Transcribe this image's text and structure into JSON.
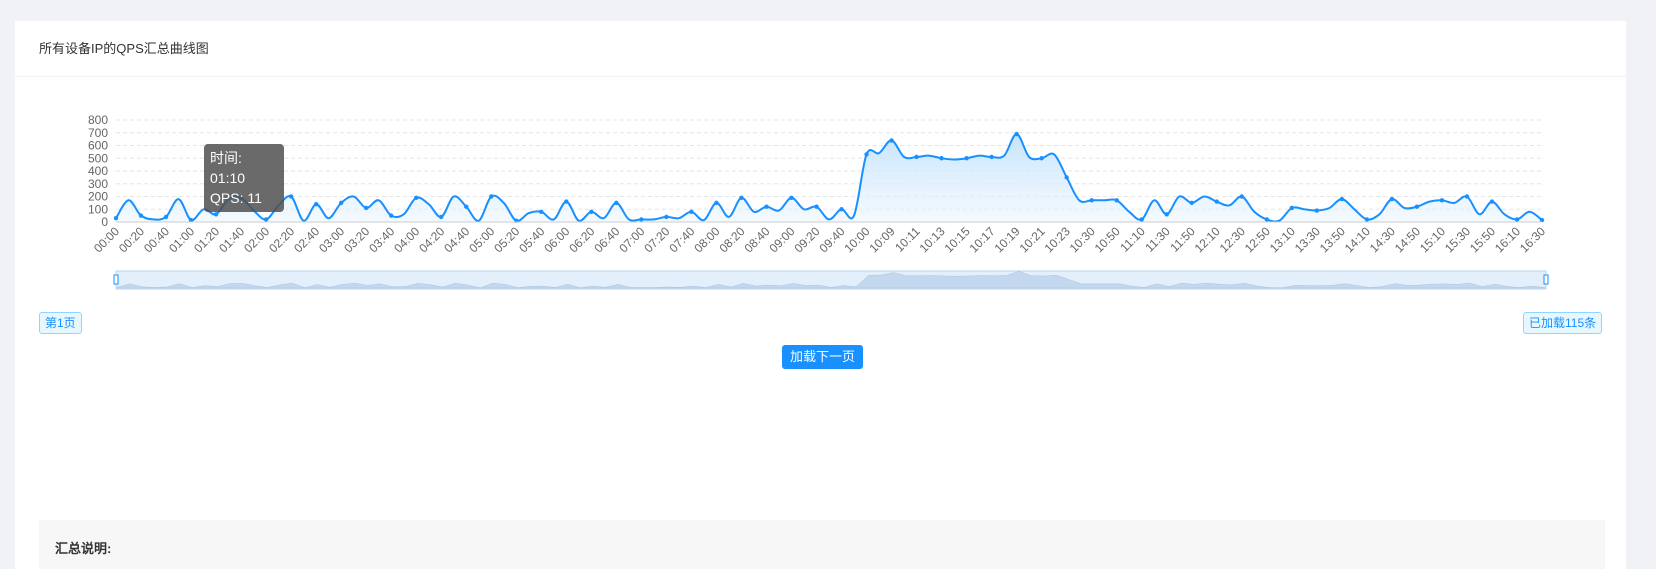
{
  "card": {
    "title": "所有设备IP的QPS汇总曲线图"
  },
  "tooltip": {
    "time_line": "时间: 01:10",
    "qps_line": "QPS: 11"
  },
  "pagination": {
    "page_badge": "第1页",
    "loaded_badge": "已加载115条",
    "next_button": "加载下一页"
  },
  "summary": {
    "title": "汇总说明:"
  },
  "colors": {
    "line": "#1890ff",
    "area_top": "#bfe0fb",
    "accent": "#1890ff"
  },
  "chart_data": {
    "type": "area",
    "title": "",
    "xlabel": "",
    "ylabel": "",
    "ylim": [
      0,
      800
    ],
    "yticks": [
      0,
      100,
      200,
      300,
      400,
      500,
      600,
      700,
      800
    ],
    "grid": true,
    "x_ticks": [
      "00:00",
      "00:20",
      "00:40",
      "01:00",
      "01:20",
      "01:40",
      "02:00",
      "02:20",
      "02:40",
      "03:00",
      "03:20",
      "03:40",
      "04:00",
      "04:20",
      "04:40",
      "05:00",
      "05:20",
      "05:40",
      "06:00",
      "06:20",
      "06:40",
      "07:00",
      "07:20",
      "07:40",
      "08:00",
      "08:20",
      "08:40",
      "09:00",
      "09:20",
      "09:40",
      "10:00",
      "10:09",
      "10:11",
      "10:13",
      "10:15",
      "10:17",
      "10:19",
      "10:21",
      "10:23",
      "10:30",
      "10:50",
      "11:10",
      "11:30",
      "11:50",
      "12:10",
      "12:30",
      "12:50",
      "13:10",
      "13:30",
      "13:50",
      "14:10",
      "14:30",
      "14:50",
      "15:10",
      "15:30",
      "15:50",
      "16:10",
      "16:30"
    ],
    "series": [
      {
        "values": [
          30,
          170,
          50,
          20,
          40,
          180,
          15,
          100,
          60,
          180,
          190,
          90,
          20,
          130,
          200,
          10,
          140,
          30,
          150,
          200,
          110,
          170,
          50,
          60,
          190,
          140,
          40,
          200,
          120,
          10,
          200,
          150,
          10,
          70,
          80,
          20,
          160,
          10,
          80,
          30,
          150,
          20,
          20,
          20,
          40,
          30,
          80,
          15,
          150,
          40,
          190,
          80,
          120,
          90,
          190,
          100,
          120,
          20,
          100,
          50,
          530,
          540,
          640,
          510,
          510,
          520,
          500,
          490,
          500,
          520,
          510,
          520,
          690,
          510,
          500,
          530,
          350,
          170,
          170,
          170,
          170,
          80,
          20,
          170,
          60,
          200,
          150,
          200,
          160,
          130,
          200,
          80,
          20,
          10,
          110,
          100,
          90,
          110,
          180,
          100,
          20,
          60,
          180,
          110,
          120,
          160,
          170,
          150,
          200,
          60,
          160,
          60,
          20,
          80,
          15
        ]
      }
    ]
  }
}
